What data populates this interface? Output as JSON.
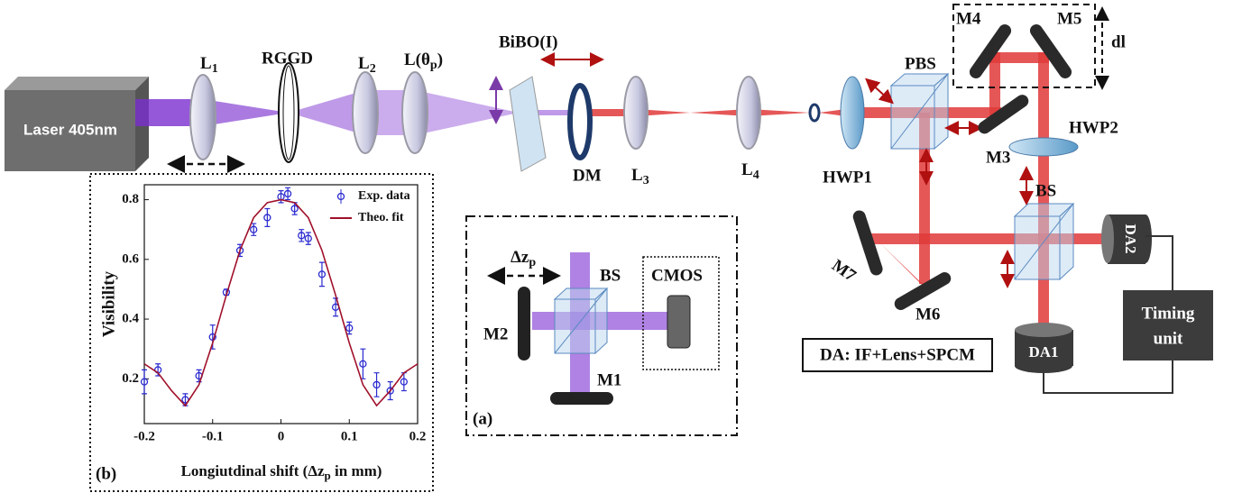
{
  "labels": {
    "laser": "Laser 405nm",
    "l1": {
      "main": "L",
      "sub": "1"
    },
    "rggd": "RGGD",
    "l2": {
      "main": "L",
      "sub": "2"
    },
    "ltheta": {
      "main": "L(θ",
      "sub": "p",
      "tail": ")"
    },
    "bibo": "BiBO(I)",
    "dm": "DM",
    "l3": {
      "main": "L",
      "sub": "3"
    },
    "l4": {
      "main": "L",
      "sub": "4"
    },
    "hwp1": "HWP1",
    "pbs": "PBS",
    "m3": "M3",
    "m4": "M4",
    "m5": "M5",
    "dl": "dl",
    "hwp2": "HWP2",
    "bs": "BS",
    "da2": "DA2",
    "da1": "DA1",
    "m7": "M7",
    "m6": "M6",
    "timing": [
      "Timing",
      "unit"
    ],
    "da_note": "DA: IF+Lens+SPCM"
  },
  "inset_a": {
    "tag": "(a)",
    "dz": {
      "main": "Δz",
      "sub": "p"
    },
    "bs": "BS",
    "cmos": "CMOS",
    "m2": "M2",
    "m1": "M1"
  },
  "chart_data": {
    "type": "scatter",
    "tag": "(b)",
    "x_label": {
      "main": "Longiutdinal shift (Δz",
      "sub": "p",
      "tail": " in mm)"
    },
    "y_label": "Visibility",
    "xlim": [
      -0.2,
      0.2
    ],
    "ylim": [
      0.05,
      0.85
    ],
    "xticks": [
      -0.2,
      -0.1,
      0,
      0.1,
      0.2
    ],
    "yticks": [
      0.2,
      0.4,
      0.6,
      0.8
    ],
    "series": [
      {
        "name": "Exp. data",
        "color": "#2a2ad0",
        "x": [
          -0.2,
          -0.18,
          -0.14,
          -0.12,
          -0.1,
          -0.08,
          -0.06,
          -0.04,
          -0.02,
          0,
          0.01,
          0.02,
          0.03,
          0.04,
          0.06,
          0.08,
          0.1,
          0.12,
          0.14,
          0.16,
          0.18
        ],
        "values": [
          0.19,
          0.23,
          0.13,
          0.21,
          0.34,
          0.49,
          0.63,
          0.7,
          0.74,
          0.81,
          0.82,
          0.77,
          0.68,
          0.67,
          0.55,
          0.44,
          0.37,
          0.25,
          0.18,
          0.16,
          0.19
        ],
        "errors": [
          0.04,
          0.02,
          0.02,
          0.02,
          0.04,
          0.01,
          0.02,
          0.02,
          0.03,
          0.02,
          0.02,
          0.02,
          0.02,
          0.02,
          0.04,
          0.03,
          0.02,
          0.05,
          0.04,
          0.03,
          0.03
        ]
      },
      {
        "name": "Theo. fit",
        "color": "#a0102a",
        "x": [
          -0.2,
          -0.18,
          -0.16,
          -0.14,
          -0.12,
          -0.1,
          -0.08,
          -0.06,
          -0.04,
          -0.02,
          0,
          0.02,
          0.04,
          0.06,
          0.08,
          0.1,
          0.12,
          0.14,
          0.16,
          0.18,
          0.2
        ],
        "values": [
          0.25,
          0.22,
          0.16,
          0.11,
          0.18,
          0.32,
          0.48,
          0.63,
          0.74,
          0.79,
          0.8,
          0.79,
          0.74,
          0.63,
          0.48,
          0.32,
          0.18,
          0.11,
          0.16,
          0.22,
          0.25
        ]
      }
    ]
  }
}
